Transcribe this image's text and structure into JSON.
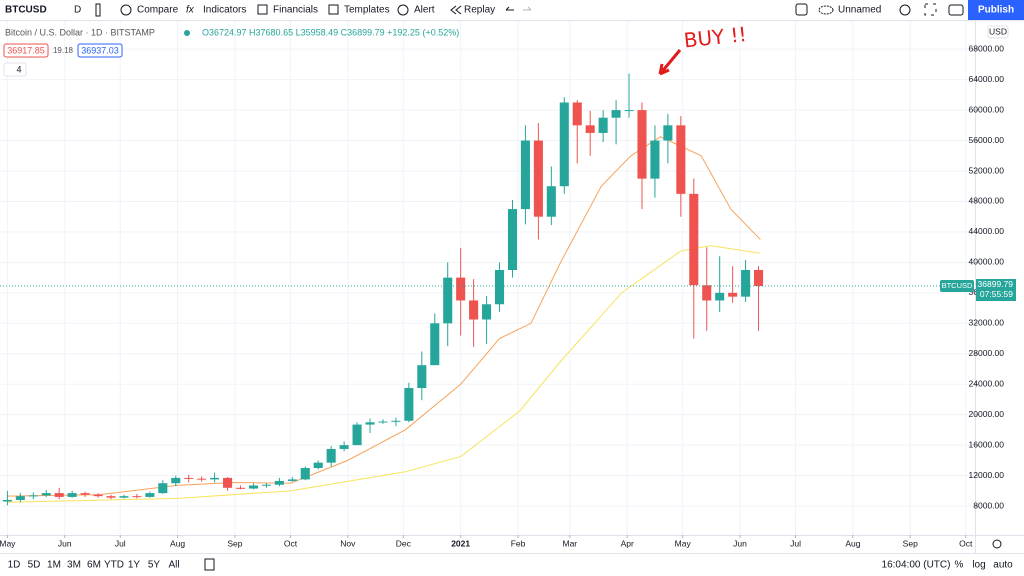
{
  "toolbar": {
    "symbol": "BTCUSD",
    "interval": "D",
    "compare": "Compare",
    "indicators": "Indicators",
    "financials": "Financials",
    "templates": "Templates",
    "alert": "Alert",
    "replay": "Replay",
    "layout": "Unnamed",
    "publish": "Publish"
  },
  "legend": {
    "title": "Bitcoin / U.S. Dollar · 1D · BITSTAMP",
    "ohlc": "O36724.97 H37680.65 L35958.49 C36899.79 +192.25 (+0.52%)",
    "bid": "36917.85",
    "spread": "19.18",
    "ask": "36937.03",
    "indicators_count": "4"
  },
  "annotation": "BUY !!",
  "chart_data": {
    "type": "candlestick",
    "currency": "USD",
    "symbol_tag": "BTCUSD",
    "countdown": "07:55:59",
    "up_color": "#26a69a",
    "down_color": "#ef5350",
    "x": [
      0,
      7,
      14,
      21,
      28,
      35,
      42,
      49,
      56,
      63,
      70,
      77,
      84,
      91,
      98,
      105,
      112,
      119,
      126,
      133,
      140,
      147,
      154,
      161,
      168,
      175,
      182,
      189,
      196,
      203,
      210,
      217,
      224,
      231,
      238,
      245,
      252,
      259,
      266,
      273,
      280,
      287,
      294,
      301,
      308,
      315,
      322,
      329,
      336,
      343,
      350,
      357,
      364,
      371,
      378,
      385,
      392,
      399,
      406
    ],
    "open": [
      8600,
      8800,
      9300,
      9400,
      9700,
      9200,
      9700,
      9500,
      9300,
      9100,
      9300,
      9200,
      9700,
      11000,
      11700,
      11600,
      11500,
      11700,
      10400,
      10300,
      10700,
      10800,
      11300,
      11500,
      13000,
      13700,
      15500,
      16000,
      18700,
      19000,
      19100,
      19200,
      23500,
      26500,
      32000,
      38000,
      35000,
      32500,
      34500,
      39000,
      47000,
      56000,
      46000,
      50000,
      61000,
      58000,
      57000,
      59000,
      60000,
      60000,
      51000,
      56000,
      58000,
      49000,
      37000,
      35000,
      36000,
      35500,
      39000
    ],
    "high": [
      10000,
      9700,
      9800,
      10100,
      10400,
      10000,
      9900,
      9700,
      9500,
      9500,
      9600,
      9900,
      11400,
      12000,
      12100,
      11900,
      12400,
      11800,
      10700,
      11000,
      11000,
      11700,
      11800,
      13200,
      14000,
      15900,
      16500,
      19000,
      19500,
      19400,
      19600,
      24200,
      28300,
      33300,
      40000,
      41900,
      37800,
      35600,
      40000,
      48200,
      58000,
      58300,
      52600,
      61700,
      61300,
      59900,
      60000,
      61300,
      64800,
      61000,
      58000,
      59500,
      59200,
      51000,
      42000,
      40800,
      39500,
      40300,
      39500
    ],
    "low": [
      8100,
      8500,
      8900,
      9200,
      8900,
      9100,
      9200,
      9100,
      8900,
      9000,
      9000,
      9100,
      9600,
      10600,
      11100,
      11200,
      11100,
      10000,
      10200,
      10200,
      10400,
      10600,
      11200,
      11400,
      12800,
      13200,
      15200,
      16000,
      17600,
      18800,
      18500,
      19000,
      21900,
      26600,
      29000,
      30400,
      28900,
      29300,
      33500,
      38000,
      45000,
      43000,
      44900,
      49000,
      53000,
      54000,
      55800,
      55500,
      59000,
      47000,
      48500,
      53000,
      46000,
      30000,
      31000,
      33500,
      34700,
      34800,
      31000
    ],
    "close": [
      8800,
      9300,
      9400,
      9700,
      9200,
      9700,
      9500,
      9300,
      9100,
      9300,
      9200,
      9700,
      11000,
      11700,
      11600,
      11500,
      11700,
      10400,
      10300,
      10700,
      10800,
      11300,
      11500,
      13000,
      13700,
      15500,
      16000,
      18700,
      19000,
      19100,
      19200,
      23500,
      26500,
      32000,
      38000,
      35000,
      32500,
      34500,
      39000,
      47000,
      56000,
      46000,
      50000,
      61000,
      58000,
      57000,
      59000,
      60000,
      60000,
      51000,
      56000,
      58000,
      49000,
      37000,
      35000,
      36000,
      35500,
      39000,
      36899.79
    ],
    "overlays": [
      {
        "color": "#f7a35c",
        "x": [
          0,
          50,
          91,
          122,
          153,
          184,
          215,
          245,
          266,
          283,
          299,
          321,
          337,
          353,
          375,
          391,
          407
        ],
        "values": [
          9300,
          9500,
          10700,
          11100,
          11000,
          14000,
          18000,
          24000,
          30000,
          32000,
          40000,
          50000,
          54000,
          56500,
          54000,
          47000,
          43000
        ]
      },
      {
        "color": "#f7e35c",
        "x": [
          0,
          91,
          153,
          215,
          245,
          277,
          299,
          332,
          364,
          380,
          407
        ],
        "values": [
          8500,
          9000,
          10000,
          12500,
          14500,
          20500,
          27000,
          36000,
          41500,
          42200,
          41200
        ]
      }
    ],
    "xlim": [
      -4,
      523
    ],
    "ylim": [
      4200,
      71700
    ],
    "yticks": [
      {
        "value": 8000,
        "label": "8000.00"
      },
      {
        "value": 12000,
        "label": "12000.00"
      },
      {
        "value": 16000,
        "label": "16000.00"
      },
      {
        "value": 20000,
        "label": "20000.00"
      },
      {
        "value": 24000,
        "label": "24000.00"
      },
      {
        "value": 28000,
        "label": "28000.00"
      },
      {
        "value": 32000,
        "label": "32000.00"
      },
      {
        "value": 36000,
        "label": "36000.00"
      },
      {
        "value": 40000,
        "label": "40000.00"
      },
      {
        "value": 44000,
        "label": "44000.00"
      },
      {
        "value": 48000,
        "label": "48000.00"
      },
      {
        "value": 52000,
        "label": "52000.00"
      },
      {
        "value": 56000,
        "label": "56000.00"
      },
      {
        "value": 60000,
        "label": "60000.00"
      },
      {
        "value": 64000,
        "label": "64000.00"
      },
      {
        "value": 68000,
        "label": "68000.00"
      }
    ],
    "xticks": [
      {
        "value": 0,
        "label": "May"
      },
      {
        "value": 31,
        "label": "Jun"
      },
      {
        "value": 61,
        "label": "Jul"
      },
      {
        "value": 92,
        "label": "Aug"
      },
      {
        "value": 123,
        "label": "Sep"
      },
      {
        "value": 153,
        "label": "Oct"
      },
      {
        "value": 184,
        "label": "Nov"
      },
      {
        "value": 214,
        "label": "Dec"
      },
      {
        "value": 245,
        "label": "2021"
      },
      {
        "value": 276,
        "label": "Feb"
      },
      {
        "value": 304,
        "label": "Mar"
      },
      {
        "value": 335,
        "label": "Apr"
      },
      {
        "value": 365,
        "label": "May"
      },
      {
        "value": 396,
        "label": "Jun"
      },
      {
        "value": 426,
        "label": "Jul"
      },
      {
        "value": 457,
        "label": "Aug"
      },
      {
        "value": 488,
        "label": "Sep"
      },
      {
        "value": 518,
        "label": "Oct"
      }
    ],
    "grid": true
  },
  "bottom_bar": {
    "ranges": [
      "1D",
      "5D",
      "1M",
      "3M",
      "6M",
      "YTD",
      "1Y",
      "5Y",
      "All"
    ],
    "time": "16:04:00 (UTC)",
    "percent": "%",
    "log": "log",
    "auto": "auto"
  }
}
